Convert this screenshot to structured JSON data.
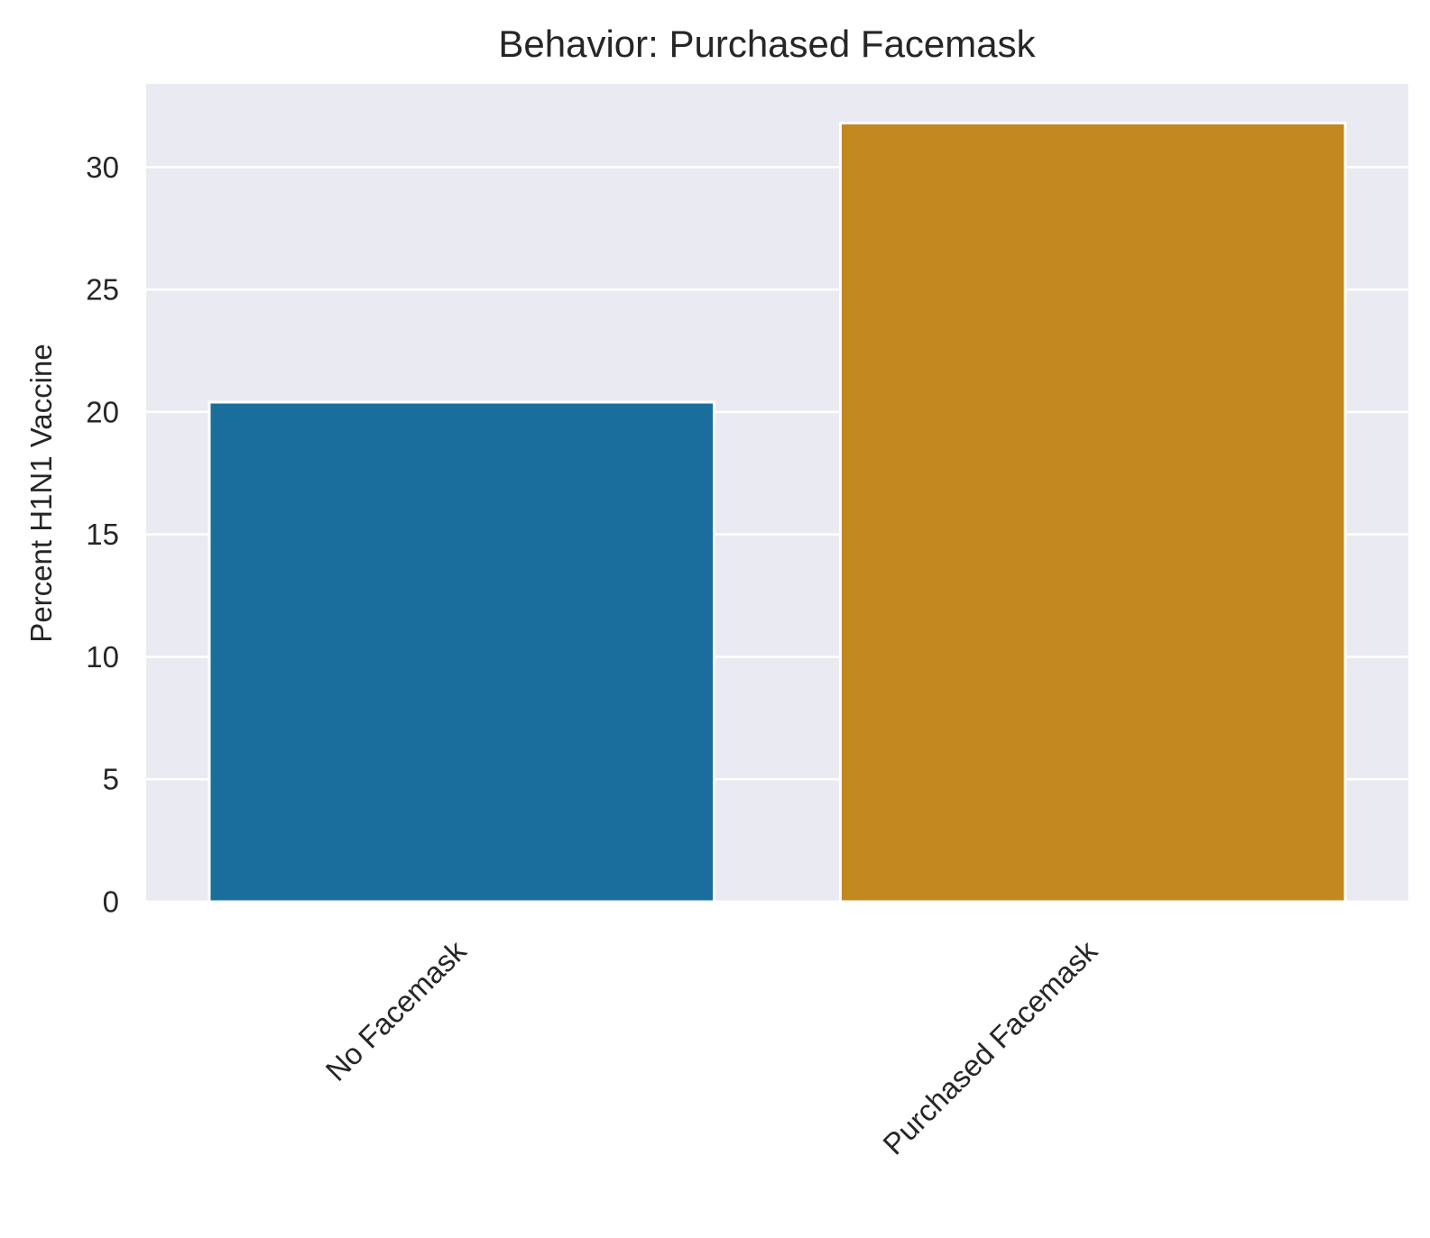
{
  "chart_data": {
    "type": "bar",
    "title": "Behavior: Purchased Facemask",
    "xlabel": "",
    "ylabel": "Percent H1N1 Vaccine",
    "categories": [
      "No Facemask",
      "Purchased Facemask"
    ],
    "values": [
      20.4,
      31.8
    ],
    "yticks": [
      0,
      5,
      10,
      15,
      20,
      25,
      30
    ],
    "ylim": [
      0,
      33.4
    ],
    "grid": true,
    "legend": "none",
    "colors": {
      "bars": [
        "#1a6e9c",
        "#c28820"
      ],
      "plot_background": "#eaeaf2",
      "grid": "#ffffff",
      "text": "#262626"
    }
  }
}
